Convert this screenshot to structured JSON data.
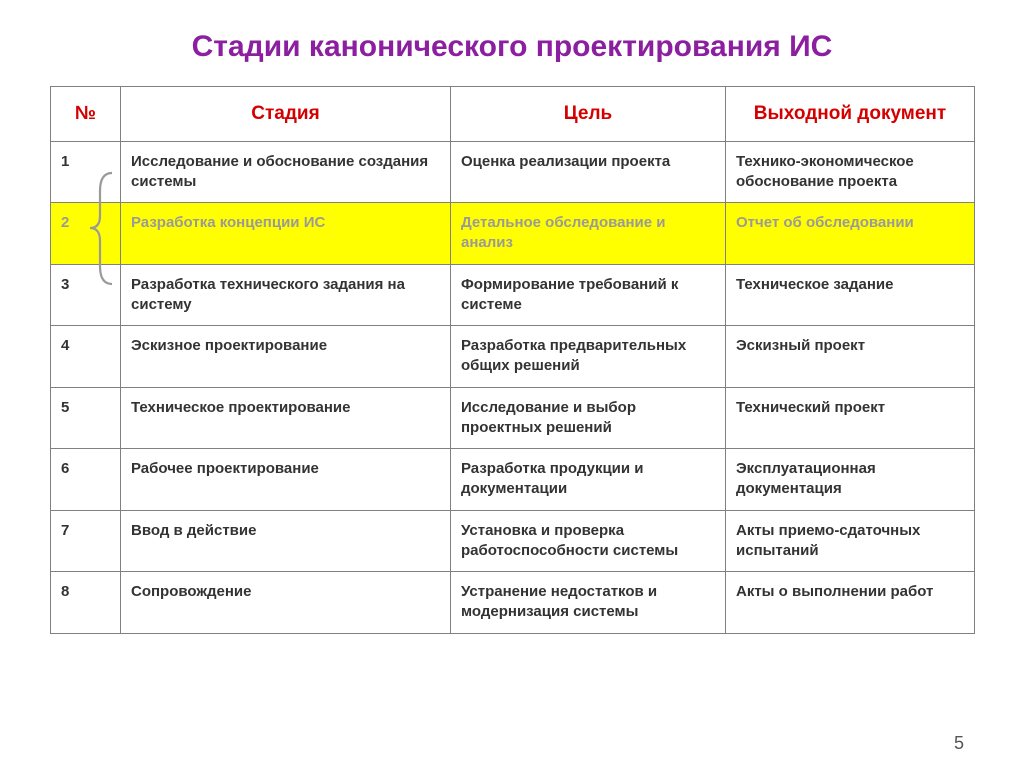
{
  "title": "Стадии канонического проектирования ИС",
  "page_number": "5",
  "colors": {
    "title": "#8b1fa0",
    "header_text": "#d40000",
    "border": "#808080",
    "row_text": "#333333",
    "highlight_bg": "#ffff00",
    "dim_text": "#9a9a9a",
    "brace": "#9a9a9a",
    "page_num": "#555555"
  },
  "headers": {
    "num": "№",
    "stage": "Стадия",
    "goal": "Цель",
    "doc": "Выходной документ"
  },
  "rows": [
    {
      "num": "1",
      "stage": "Исследование и обоснование создания системы",
      "goal": "Оценка реализации проекта",
      "doc": "Технико-экономическое обоснование проекта",
      "highlight": false
    },
    {
      "num": "2",
      "stage": "Разработка концепции ИС",
      "goal": "Детальное обследование и анализ",
      "doc": "Отчет об обследовании",
      "highlight": true
    },
    {
      "num": "3",
      "stage": "Разработка технического задания на систему",
      "goal": "Формирование требований к системе",
      "doc": "Техническое задание",
      "highlight": false
    },
    {
      "num": "4",
      "stage": "Эскизное проектирование",
      "goal": "Разработка предварительных общих решений",
      "doc": "Эскизный проект",
      "highlight": false
    },
    {
      "num": "5",
      "stage": "Техническое проектирование",
      "goal": "Исследование и выбор проектных решений",
      "doc": "Технический проект",
      "highlight": false
    },
    {
      "num": "6",
      "stage": "Рабочее проектирование",
      "goal": "Разработка продукции и документации",
      "doc": "Эксплуатационная документация",
      "highlight": false
    },
    {
      "num": "7",
      "stage": "Ввод в действие",
      "goal": "Установка и проверка работоспособности системы",
      "doc": "Акты приемо-сдаточных испытаний",
      "highlight": false
    },
    {
      "num": "8",
      "stage": "Сопровождение",
      "goal": "Устранение недостатков и модернизация системы",
      "doc": "Акты о выполнении работ",
      "highlight": false
    }
  ]
}
